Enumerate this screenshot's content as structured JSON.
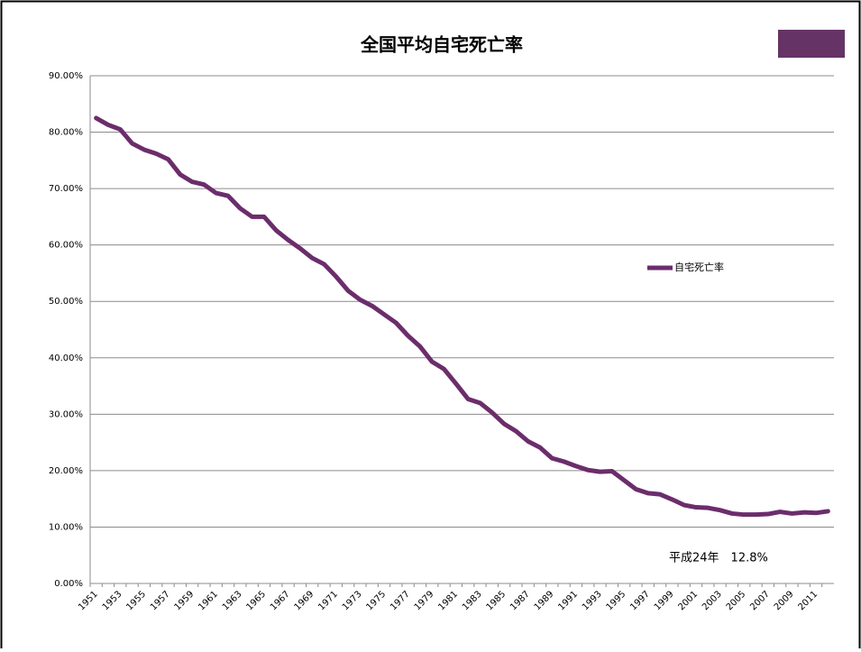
{
  "chart_data": {
    "type": "line",
    "title": "全国平均自宅死亡率",
    "categories": [
      "1951",
      null,
      "1953",
      null,
      "1955",
      null,
      "1957",
      null,
      "1959",
      null,
      "1961",
      null,
      "1963",
      null,
      "1965",
      null,
      "1967",
      null,
      "1969",
      null,
      "1971",
      null,
      "1973",
      null,
      "1975",
      null,
      "1977",
      null,
      "1979",
      null,
      "1981",
      null,
      "1983",
      null,
      "1985",
      null,
      "1987",
      null,
      "1989",
      null,
      "1991",
      null,
      "1993",
      null,
      "1995",
      null,
      "1997",
      null,
      "1999",
      null,
      "2001",
      null,
      "2003",
      null,
      "2005",
      null,
      "2007",
      null,
      "2009",
      null,
      "2011",
      null
    ],
    "series": [
      {
        "name": "自宅死亡率",
        "color": "#6b2d6b",
        "values": [
          82.5,
          81.3,
          80.5,
          78.0,
          76.9,
          76.2,
          75.2,
          72.5,
          71.2,
          70.7,
          69.2,
          68.7,
          66.5,
          65.0,
          65.0,
          62.6,
          60.9,
          59.4,
          57.7,
          56.6,
          54.4,
          51.9,
          50.3,
          49.2,
          47.7,
          46.2,
          43.9,
          42.0,
          39.3,
          38.0,
          35.4,
          32.7,
          32.0,
          30.3,
          28.3,
          27.0,
          25.2,
          24.1,
          22.2,
          21.6,
          20.8,
          20.1,
          19.8,
          19.9,
          18.3,
          16.7,
          16.0,
          15.8,
          14.9,
          13.9,
          13.5,
          13.4,
          13.0,
          12.4,
          12.2,
          12.2,
          12.3,
          12.7,
          12.4,
          12.6,
          12.5,
          12.8
        ]
      }
    ],
    "ylim": [
      0,
      90
    ],
    "yticks": [
      {
        "value": 0,
        "label": "0.00%"
      },
      {
        "value": 10,
        "label": "10.00%"
      },
      {
        "value": 20,
        "label": "20.00%"
      },
      {
        "value": 30,
        "label": "30.00%"
      },
      {
        "value": 40,
        "label": "40.00%"
      },
      {
        "value": 50,
        "label": "50.00%"
      },
      {
        "value": 60,
        "label": "60.00%"
      },
      {
        "value": 70,
        "label": "70.00%"
      },
      {
        "value": 80,
        "label": "80.00%"
      },
      {
        "value": 90,
        "label": "90.00%"
      }
    ],
    "grid": true,
    "legend": "right",
    "annotation": "平成24年　12.8%"
  }
}
